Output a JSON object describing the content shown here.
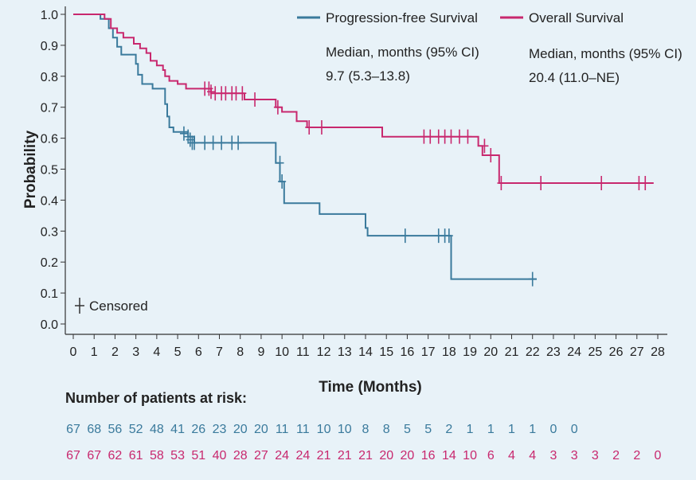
{
  "chart_data": {
    "type": "line",
    "subtype": "kaplan-meier",
    "xlabel": "Time (Months)",
    "ylabel": "Probability",
    "xlim": [
      0,
      28
    ],
    "ylim": [
      0,
      1.0
    ],
    "x_ticks": [
      0,
      1,
      2,
      3,
      4,
      5,
      6,
      7,
      8,
      9,
      10,
      11,
      12,
      13,
      14,
      15,
      16,
      17,
      18,
      19,
      20,
      21,
      22,
      23,
      24,
      25,
      26,
      27,
      28
    ],
    "y_ticks": [
      "0.0",
      "0.1",
      "0.2",
      "0.3",
      "0.4",
      "0.5",
      "0.6",
      "0.7",
      "0.8",
      "0.9",
      "1.0"
    ],
    "censored_label": "Censored",
    "colors": {
      "pfs": "#3a7a9c",
      "os": "#c8286e"
    },
    "series": [
      {
        "name": "Progression-free Survival",
        "key": "pfs",
        "median_label": "Median, months (95% CI)",
        "median_value": "9.7 (5.3–13.8)",
        "steps": [
          [
            0,
            1.0
          ],
          [
            1.3,
            0.985
          ],
          [
            1.7,
            0.955
          ],
          [
            1.9,
            0.925
          ],
          [
            2.1,
            0.895
          ],
          [
            2.3,
            0.87
          ],
          [
            3.0,
            0.84
          ],
          [
            3.1,
            0.805
          ],
          [
            3.3,
            0.775
          ],
          [
            3.8,
            0.76
          ],
          [
            4.4,
            0.71
          ],
          [
            4.5,
            0.67
          ],
          [
            4.6,
            0.635
          ],
          [
            4.8,
            0.62
          ],
          [
            5.5,
            0.605
          ],
          [
            5.8,
            0.585
          ],
          [
            9.7,
            0.52
          ],
          [
            9.9,
            0.46
          ],
          [
            10.1,
            0.39
          ],
          [
            11.8,
            0.355
          ],
          [
            14.0,
            0.31
          ],
          [
            14.1,
            0.285
          ],
          [
            18.1,
            0.145
          ],
          [
            22.2,
            0.145
          ]
        ],
        "censored": [
          [
            5.3,
            0.615
          ],
          [
            5.5,
            0.605
          ],
          [
            5.6,
            0.595
          ],
          [
            5.7,
            0.585
          ],
          [
            5.8,
            0.585
          ],
          [
            6.3,
            0.585
          ],
          [
            6.7,
            0.585
          ],
          [
            7.1,
            0.585
          ],
          [
            7.6,
            0.585
          ],
          [
            7.9,
            0.585
          ],
          [
            9.9,
            0.52
          ],
          [
            10.0,
            0.46
          ],
          [
            15.9,
            0.285
          ],
          [
            17.5,
            0.285
          ],
          [
            17.8,
            0.285
          ],
          [
            18.0,
            0.285
          ],
          [
            22.0,
            0.145
          ]
        ]
      },
      {
        "name": "Overall Survival",
        "key": "os",
        "median_label": "Median, months (95% CI)",
        "median_value": "20.4 (11.0–NE)",
        "steps": [
          [
            0,
            1.0
          ],
          [
            1.5,
            0.985
          ],
          [
            1.8,
            0.955
          ],
          [
            2.1,
            0.94
          ],
          [
            2.4,
            0.925
          ],
          [
            2.9,
            0.905
          ],
          [
            3.2,
            0.89
          ],
          [
            3.5,
            0.875
          ],
          [
            3.7,
            0.85
          ],
          [
            4.0,
            0.835
          ],
          [
            4.3,
            0.82
          ],
          [
            4.4,
            0.8
          ],
          [
            4.6,
            0.785
          ],
          [
            5.0,
            0.775
          ],
          [
            5.4,
            0.76
          ],
          [
            6.1,
            0.76
          ],
          [
            6.6,
            0.745
          ],
          [
            8.2,
            0.725
          ],
          [
            9.7,
            0.7
          ],
          [
            10.0,
            0.685
          ],
          [
            10.7,
            0.655
          ],
          [
            11.2,
            0.635
          ],
          [
            14.8,
            0.605
          ],
          [
            19.4,
            0.575
          ],
          [
            19.6,
            0.545
          ],
          [
            20.4,
            0.455
          ],
          [
            27.8,
            0.455
          ]
        ],
        "censored": [
          [
            6.3,
            0.76
          ],
          [
            6.5,
            0.76
          ],
          [
            6.6,
            0.75
          ],
          [
            6.8,
            0.745
          ],
          [
            7.1,
            0.745
          ],
          [
            7.3,
            0.745
          ],
          [
            7.6,
            0.745
          ],
          [
            7.8,
            0.745
          ],
          [
            8.1,
            0.745
          ],
          [
            8.7,
            0.725
          ],
          [
            9.8,
            0.7
          ],
          [
            11.3,
            0.635
          ],
          [
            11.9,
            0.635
          ],
          [
            16.8,
            0.605
          ],
          [
            17.1,
            0.605
          ],
          [
            17.5,
            0.605
          ],
          [
            17.8,
            0.605
          ],
          [
            18.1,
            0.605
          ],
          [
            18.5,
            0.605
          ],
          [
            18.9,
            0.605
          ],
          [
            19.7,
            0.575
          ],
          [
            20.0,
            0.545
          ],
          [
            20.5,
            0.455
          ],
          [
            22.4,
            0.455
          ],
          [
            25.3,
            0.455
          ],
          [
            27.1,
            0.455
          ],
          [
            27.4,
            0.455
          ]
        ]
      }
    ],
    "risk_table": {
      "title": "Number of patients at risk:",
      "pfs": [
        67,
        68,
        56,
        52,
        48,
        41,
        26,
        23,
        20,
        20,
        11,
        11,
        10,
        10,
        8,
        8,
        5,
        5,
        2,
        1,
        1,
        1,
        1,
        0,
        0
      ],
      "os": [
        67,
        67,
        62,
        61,
        58,
        53,
        51,
        40,
        28,
        27,
        24,
        24,
        21,
        21,
        21,
        20,
        20,
        16,
        14,
        10,
        6,
        4,
        4,
        3,
        3,
        3,
        2,
        2,
        0
      ]
    }
  }
}
